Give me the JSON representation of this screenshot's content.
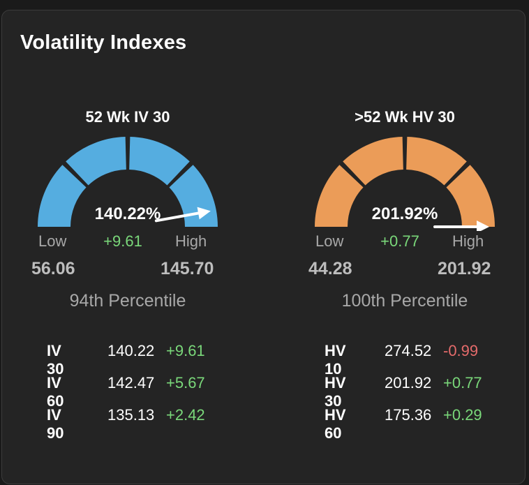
{
  "title": "Volatility Indexes",
  "colors": {
    "iv_gauge": "#55ade0",
    "hv_gauge": "#eb9c58",
    "positive": "#7ad87a",
    "negative": "#e56b6b"
  },
  "gauges": [
    {
      "title": "52 Wk IV 30",
      "current": "140.22%",
      "low_label": "Low",
      "high_label": "High",
      "change": "+9.61",
      "low": "56.06",
      "high": "145.70",
      "percentile": "94th Percentile",
      "needle_fraction": 0.94
    },
    {
      "title": ">52 Wk HV 30",
      "current": "201.92%",
      "low_label": "Low",
      "high_label": "High",
      "change": "+0.77",
      "low": "44.28",
      "high": "201.92",
      "percentile": "100th Percentile",
      "needle_fraction": 1.0
    }
  ],
  "iv_stats": [
    {
      "label": "IV 30",
      "value": "140.22",
      "change": "+9.61"
    },
    {
      "label": "IV 60",
      "value": "142.47",
      "change": "+5.67"
    },
    {
      "label": "IV 90",
      "value": "135.13",
      "change": "+2.42"
    }
  ],
  "hv_stats": [
    {
      "label": "HV 10",
      "value": "274.52",
      "change": "-0.99"
    },
    {
      "label": "HV 30",
      "value": "201.92",
      "change": "+0.77"
    },
    {
      "label": "HV 60",
      "value": "175.36",
      "change": "+0.29"
    }
  ]
}
